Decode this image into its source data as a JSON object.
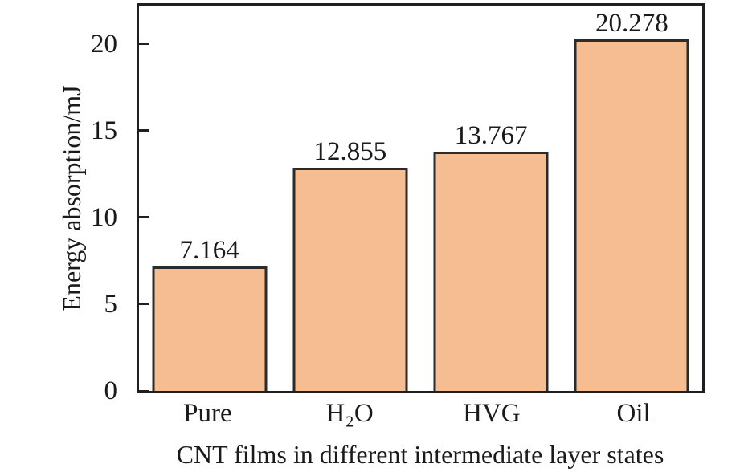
{
  "chart_data": {
    "type": "bar",
    "categories": [
      "Pure",
      "H₂O",
      "HVG",
      "Oil"
    ],
    "values": [
      7.164,
      12.855,
      13.767,
      20.278
    ],
    "value_labels": [
      "7.164",
      "12.855",
      "13.767",
      "20.278"
    ],
    "xlabel": "CNT films in different intermediate layer states",
    "ylabel": "Energy absorption/mJ",
    "ylim": [
      0,
      22.2
    ],
    "yticks": [
      0,
      5,
      10,
      15,
      20
    ],
    "grid": false,
    "legend": null,
    "colors": {
      "bar_fill": "#F6BD92",
      "bar_border": "#2B2B2B",
      "axis": "#1F1F1F",
      "text": "#1A1A1A",
      "background": "#FFFFFF"
    }
  }
}
